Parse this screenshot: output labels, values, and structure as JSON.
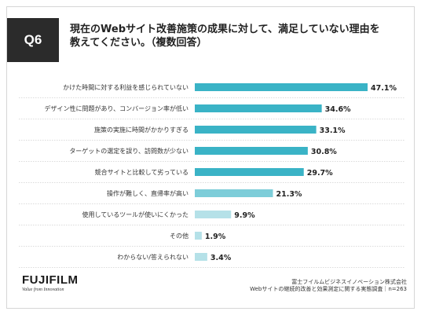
{
  "badge": "Q6",
  "question_line1": "現在のWebサイト改善施策の成果に対して、満足していない理由を",
  "question_line2": "教えてください。（複数回答）",
  "logo": {
    "wordmark": "FUJIFILM",
    "tagline": "Value from Innovation"
  },
  "source_line1": "富士フイルムビジネスイノベーション株式会社",
  "source_line2": "Webサイトの継続的改善と効果測定に関する実態調査｜n=263",
  "colors": {
    "bar_dark": "#3ab3c6",
    "bar_mid": "#7dcdd9",
    "bar_light": "#b5e1e8",
    "gridline": "#d0d0d0"
  },
  "chart_data": {
    "type": "bar",
    "orientation": "horizontal",
    "categories": [
      "かけた時間に対する利益を感じられていない",
      "デザイン性に問題があり、コンバージョン率が低い",
      "施策の実施に時間がかかりすぎる",
      "ターゲットの選定を誤り、訪問数が少ない",
      "競合サイトと比較して劣っている",
      "操作が難しく、直帰率が高い",
      "使用しているツールが使いにくかった",
      "その他",
      "わからない/答えられない"
    ],
    "values": [
      47.1,
      34.6,
      33.1,
      30.8,
      29.7,
      21.3,
      9.9,
      1.9,
      3.4
    ],
    "value_labels": [
      "47.1%",
      "34.6%",
      "33.1%",
      "30.8%",
      "29.7%",
      "21.3%",
      "9.9%",
      "1.9%",
      "3.4%"
    ],
    "xlim": [
      0,
      50
    ],
    "grid": "horizontal dotted separators"
  }
}
